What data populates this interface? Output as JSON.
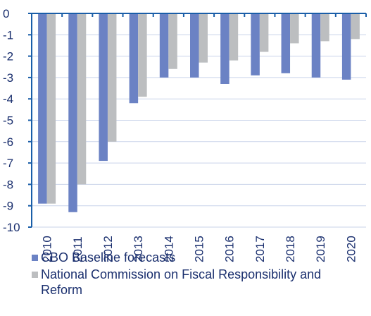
{
  "chart_data": {
    "type": "bar",
    "categories": [
      "2010",
      "2011",
      "2012",
      "2013",
      "2014",
      "2015",
      "2016",
      "2017",
      "2018",
      "2019",
      "2020"
    ],
    "series": [
      {
        "name": "CBO Baseline forecasts",
        "color": "#6b82c4",
        "values": [
          -8.9,
          -9.3,
          -6.9,
          -4.2,
          -3.0,
          -3.0,
          -3.3,
          -2.9,
          -2.8,
          -3.0,
          -3.1
        ]
      },
      {
        "name": "National Commission on Fiscal Responsibility and Reform",
        "color": "#bcbec0",
        "values": [
          -8.9,
          -8.0,
          -6.0,
          -3.9,
          -2.6,
          -2.3,
          -2.2,
          -1.8,
          -1.4,
          -1.3,
          -1.2
        ]
      }
    ],
    "yticks": [
      "0",
      "-1",
      "-2",
      "-3",
      "-4",
      "-5",
      "-6",
      "-7",
      "-8",
      "-9",
      "-10"
    ],
    "ylim": [
      -10,
      0
    ],
    "grid": true,
    "legend": "bottom"
  }
}
